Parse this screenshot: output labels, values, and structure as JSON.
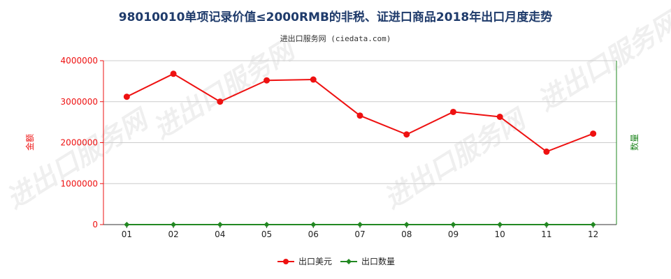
{
  "title": "98010010单项记录价值≤2000RMB的非税、证进口商品2018年出口月度走势",
  "subtitle": "进出口服务网 (ciedata.com)",
  "watermark": "进出口服务网",
  "colors": {
    "series_amount": "#ee1111",
    "series_quantity": "#228822",
    "left_axis": "#ee1111",
    "right_axis": "#228822",
    "title": "#1f3b6b",
    "grid": "#cccccc"
  },
  "chart_data": {
    "type": "line",
    "categories": [
      "01",
      "02",
      "04",
      "05",
      "06",
      "07",
      "08",
      "09",
      "10",
      "11",
      "12"
    ],
    "y_left_label": "金额",
    "y_right_label": "数量",
    "ylim": [
      0,
      4000000
    ],
    "yticks": [
      "0",
      "1000000",
      "2000000",
      "3000000",
      "4000000"
    ],
    "grid": true,
    "legend_position": "bottom-center",
    "series": [
      {
        "name": "出口美元",
        "axis": "left",
        "values": [
          3120000,
          3680000,
          3000000,
          3520000,
          3540000,
          2660000,
          2200000,
          2750000,
          2630000,
          1780000,
          2220000
        ]
      },
      {
        "name": "出口数量",
        "axis": "right",
        "values": [
          0,
          0,
          0,
          0,
          0,
          0,
          0,
          0,
          0,
          0,
          0
        ]
      }
    ]
  }
}
